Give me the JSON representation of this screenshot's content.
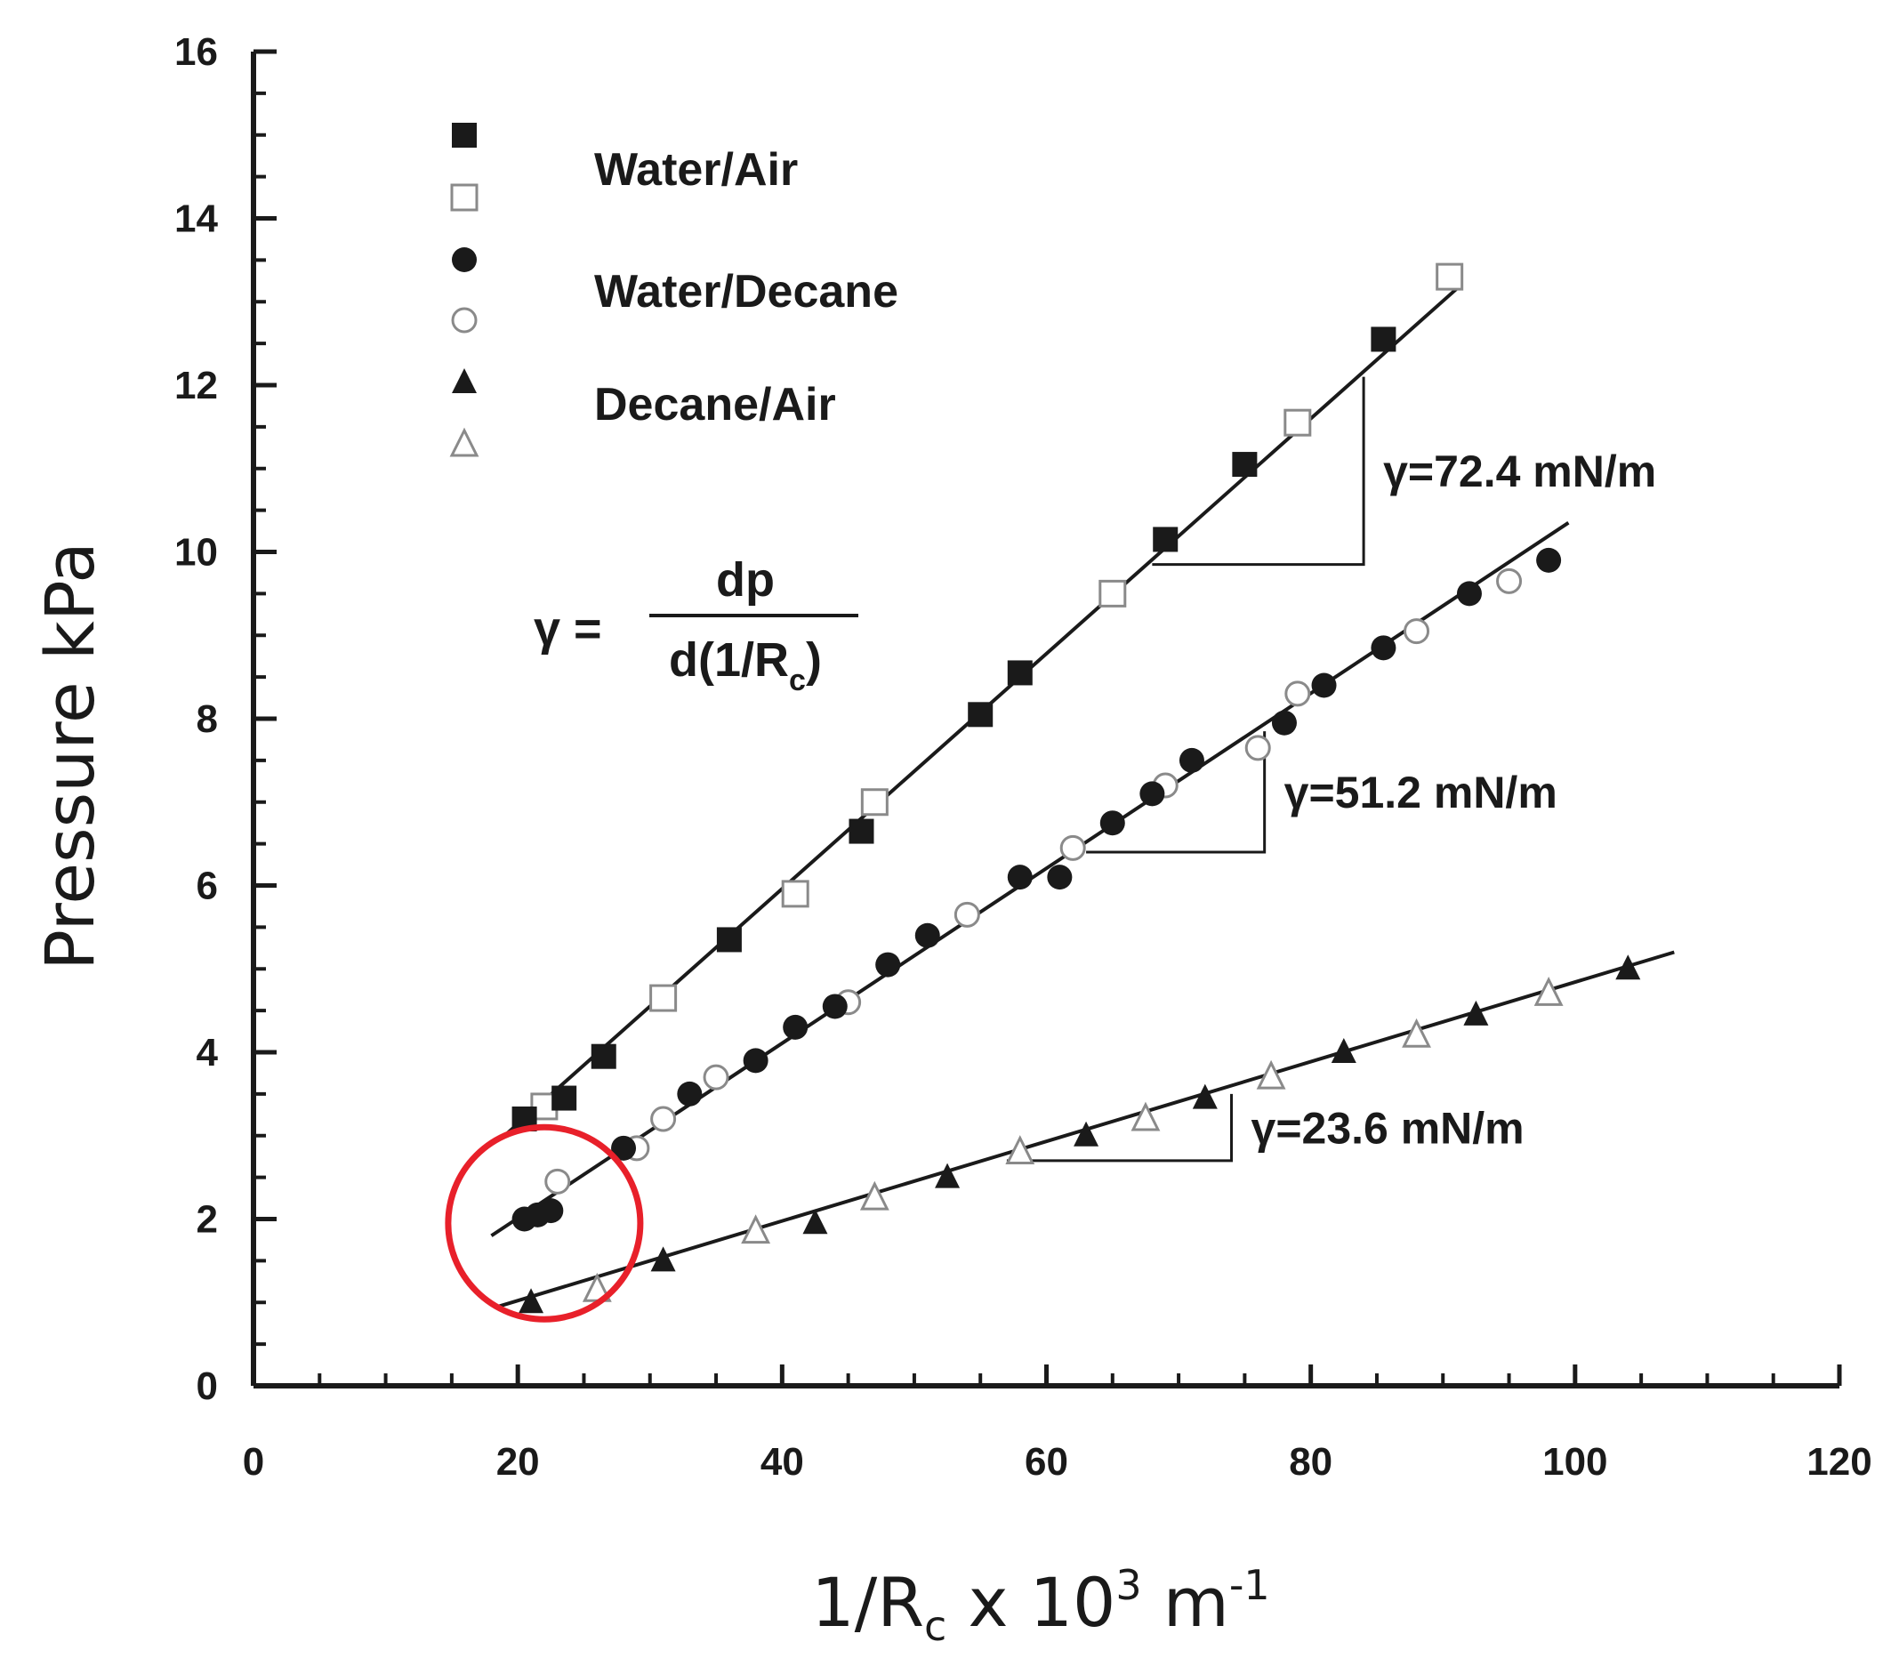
{
  "chart_data": {
    "type": "scatter",
    "title": "",
    "xlabel": "1/Rₙ x 10³ m⁻¹",
    "xlabel_parts": {
      "main": "1/R",
      "sub": "c",
      "mid": " x 10",
      "sup1": "3",
      "unit": " m",
      "sup2": "-1"
    },
    "ylabel": "Pressure kPa",
    "xlim": [
      0,
      120
    ],
    "ylim": [
      0,
      16
    ],
    "xticks": [
      "0",
      "20",
      "40",
      "60",
      "80",
      "100",
      "120"
    ],
    "yticks": [
      "0",
      "2",
      "4",
      "6",
      "8",
      "10",
      "12",
      "14",
      "16"
    ],
    "grid": false,
    "legend_position": "top-left",
    "series": [
      {
        "name": "Water/Air",
        "marker": "square-filled",
        "x": [
          20.5,
          23.5,
          26.5,
          36,
          46,
          55,
          58,
          69,
          75,
          85.5
        ],
        "y": [
          3.2,
          3.45,
          3.95,
          5.35,
          6.65,
          8.05,
          8.55,
          10.15,
          11.05,
          12.55
        ]
      },
      {
        "name": "",
        "marker": "square-open",
        "x": [
          22,
          31,
          41,
          47,
          65,
          79,
          90.5
        ],
        "y": [
          3.35,
          4.65,
          5.9,
          7.0,
          9.5,
          11.55,
          13.3
        ]
      },
      {
        "name": "Water/Decane",
        "marker": "circle-filled",
        "x": [
          20.5,
          21.5,
          22.5,
          28,
          33,
          38,
          41,
          44,
          48,
          51,
          58,
          61,
          65,
          68,
          71,
          78,
          81,
          85.5,
          92,
          98
        ],
        "y": [
          2.0,
          2.05,
          2.1,
          2.85,
          3.5,
          3.9,
          4.3,
          4.55,
          5.05,
          5.4,
          6.1,
          6.1,
          6.75,
          7.1,
          7.5,
          7.95,
          8.4,
          8.85,
          9.5,
          9.9
        ]
      },
      {
        "name": "",
        "marker": "circle-open",
        "x": [
          23,
          29,
          31,
          35,
          45,
          54,
          62,
          69,
          76,
          79,
          88,
          95
        ],
        "y": [
          2.45,
          2.85,
          3.2,
          3.7,
          4.6,
          5.65,
          6.45,
          7.2,
          7.65,
          8.3,
          9.05,
          9.65
        ]
      },
      {
        "name": "Decane/Air",
        "marker": "triangle-filled",
        "x": [
          21,
          31,
          42.5,
          52.5,
          63,
          72,
          82.5,
          92.5,
          104
        ],
        "y": [
          1.0,
          1.5,
          1.95,
          2.5,
          3.0,
          3.45,
          4.0,
          4.45,
          5.0
        ]
      },
      {
        "name": "",
        "marker": "triangle-open",
        "x": [
          26,
          38,
          47,
          58,
          67.5,
          77,
          88,
          98
        ],
        "y": [
          1.15,
          1.85,
          2.25,
          2.8,
          3.2,
          3.7,
          4.2,
          4.7
        ]
      }
    ],
    "fit_lines": [
      {
        "x": [
          19,
          91
        ],
        "y": [
          3.0,
          13.15
        ]
      },
      {
        "x": [
          18,
          99.5
        ],
        "y": [
          1.8,
          10.35
        ]
      },
      {
        "x": [
          18.5,
          107.5
        ],
        "y": [
          0.95,
          5.2
        ]
      }
    ],
    "slope_triangles": [
      {
        "x0": 68,
        "x1": 84,
        "y0": 9.85,
        "y1": 12.1,
        "label": "γ=72.4 mN/m"
      },
      {
        "x0": 63,
        "x1": 76.5,
        "y0": 6.4,
        "y1": 7.85,
        "label": "γ=51.2 mN/m"
      },
      {
        "x0": 57,
        "x1": 74,
        "y0": 2.7,
        "y1": 3.5,
        "label": "γ=23.6 mN/m"
      }
    ],
    "formula": {
      "lhs": "γ =",
      "numerator": "dp",
      "denominator_main": "d(1/R",
      "denominator_sub": "c",
      "denominator_end": ")"
    },
    "highlight": {
      "cx": 22,
      "cy": 1.95,
      "color": "#e8202a"
    },
    "colors": {
      "ink": "#1a1a1a",
      "open_marker": "#8a8a8a",
      "highlight": "#e8202a"
    }
  }
}
